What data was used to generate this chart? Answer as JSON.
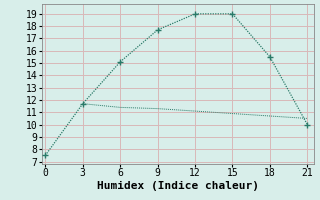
{
  "line1_x": [
    0,
    3,
    6,
    9,
    12,
    15,
    18,
    21
  ],
  "line1_y": [
    7.5,
    11.7,
    15.1,
    17.7,
    19.0,
    19.0,
    15.5,
    10.0
  ],
  "line2_x": [
    3,
    6,
    9,
    12,
    15,
    18,
    21
  ],
  "line2_y": [
    11.7,
    11.4,
    11.3,
    11.1,
    10.9,
    10.7,
    10.5
  ],
  "line_color": "#2a7a68",
  "bg_color": "#d8eeea",
  "grid_color": "#d8b8b8",
  "xlabel": "Humidex (Indice chaleur)",
  "yticks": [
    7,
    8,
    9,
    10,
    11,
    12,
    13,
    14,
    15,
    16,
    17,
    18,
    19
  ],
  "xticks": [
    0,
    3,
    6,
    9,
    12,
    15,
    18,
    21
  ],
  "xlim": [
    -0.3,
    21.5
  ],
  "ylim": [
    6.8,
    19.8
  ],
  "xlabel_fontsize": 8,
  "tick_fontsize": 7
}
